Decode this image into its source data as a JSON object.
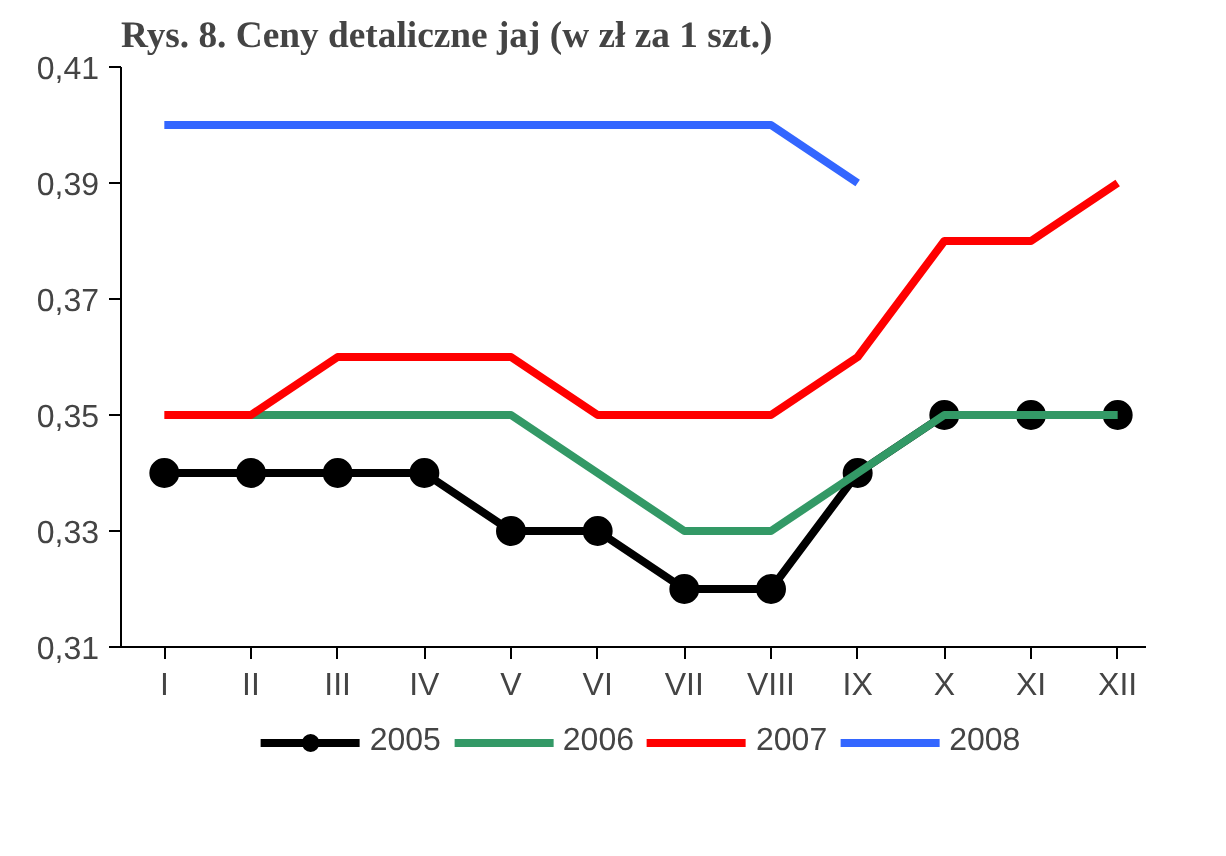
{
  "chart_data": {
    "type": "line",
    "title": "Rys. 8. Ceny detaliczne jaj (w zł za 1 szt.)",
    "categories": [
      "I",
      "II",
      "III",
      "IV",
      "V",
      "VI",
      "VII",
      "VIII",
      "IX",
      "X",
      "XI",
      "XII"
    ],
    "series": [
      {
        "name": "2005",
        "color": "#000000",
        "marker": "circle",
        "values": [
          0.34,
          0.34,
          0.34,
          0.34,
          0.33,
          0.33,
          0.32,
          0.32,
          0.34,
          0.35,
          0.35,
          0.35
        ]
      },
      {
        "name": "2006",
        "color": "#339966",
        "values": [
          null,
          0.35,
          0.35,
          0.35,
          0.35,
          0.34,
          0.33,
          0.33,
          0.34,
          0.35,
          0.35,
          0.35
        ]
      },
      {
        "name": "2007",
        "color": "#ff0000",
        "values": [
          0.35,
          0.35,
          0.36,
          0.36,
          0.36,
          0.35,
          0.35,
          0.35,
          0.36,
          0.38,
          0.38,
          0.39
        ]
      },
      {
        "name": "2008",
        "color": "#3366ff",
        "values": [
          0.4,
          0.4,
          0.4,
          0.4,
          0.4,
          0.4,
          0.4,
          0.4,
          0.39,
          null,
          null,
          null
        ]
      }
    ],
    "ylim": [
      0.31,
      0.41
    ],
    "yticks": [
      {
        "value": 0.31,
        "label": "0,31"
      },
      {
        "value": 0.33,
        "label": "0,33"
      },
      {
        "value": 0.35,
        "label": "0,35"
      },
      {
        "value": 0.37,
        "label": "0,37"
      },
      {
        "value": 0.39,
        "label": "0,39"
      },
      {
        "value": 0.41,
        "label": "0,41"
      }
    ],
    "grid": false,
    "legend": "bottom"
  }
}
